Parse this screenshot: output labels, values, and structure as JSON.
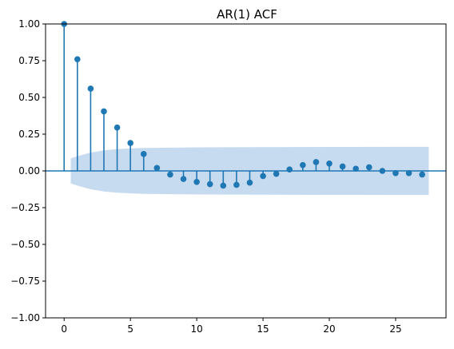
{
  "chart_data": {
    "type": "stem",
    "title": "AR(1) ACF",
    "xlabel": "",
    "ylabel": "",
    "xlim": [
      -1.4,
      28.8
    ],
    "ylim": [
      -1.0,
      1.0
    ],
    "x_ticks": [
      0,
      5,
      10,
      15,
      20,
      25
    ],
    "x_tick_labels": [
      "0",
      "5",
      "10",
      "15",
      "20",
      "25"
    ],
    "y_ticks": [
      1.0,
      0.75,
      0.5,
      0.25,
      0.0,
      -0.25,
      -0.5,
      -0.75,
      -1.0
    ],
    "y_tick_labels": [
      "1.00",
      "0.75",
      "0.50",
      "0.25",
      "0.00",
      "−0.25",
      "−0.50",
      "−0.75",
      "−1.00"
    ],
    "grid": false,
    "legend": "none",
    "lags": [
      0,
      1,
      2,
      3,
      4,
      5,
      6,
      7,
      8,
      9,
      10,
      11,
      12,
      13,
      14,
      15,
      16,
      17,
      18,
      19,
      20,
      21,
      22,
      23,
      24,
      25,
      26,
      27
    ],
    "acf": [
      1.0,
      0.76,
      0.56,
      0.405,
      0.295,
      0.19,
      0.115,
      0.02,
      -0.025,
      -0.055,
      -0.075,
      -0.09,
      -0.1,
      -0.095,
      -0.08,
      -0.035,
      -0.02,
      0.01,
      0.04,
      0.06,
      0.05,
      0.03,
      0.015,
      0.025,
      0.0,
      -0.015,
      -0.015,
      -0.025
    ],
    "confidence_band": {
      "lags": [
        0.5,
        1,
        2,
        3,
        4,
        5,
        6,
        7,
        8,
        9,
        10,
        12,
        15,
        20,
        25,
        27.5
      ],
      "upper": [
        0.085,
        0.1,
        0.125,
        0.14,
        0.148,
        0.153,
        0.156,
        0.157,
        0.158,
        0.159,
        0.16,
        0.161,
        0.162,
        0.163,
        0.164,
        0.164
      ]
    },
    "colors": {
      "stem": "#1f77b4",
      "marker": "#1f77b4",
      "band": "#c6dbef",
      "zero_line": "#1f77b4"
    }
  }
}
